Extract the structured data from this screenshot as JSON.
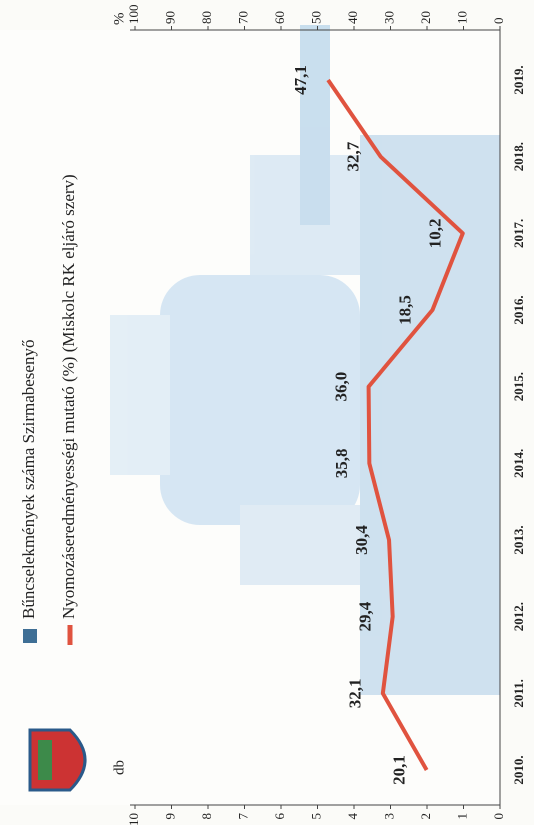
{
  "chart_data": {
    "type": "line",
    "y_label": "db",
    "y2_label": "%",
    "categories": [
      "2010.",
      "2011.",
      "2012.",
      "2013.",
      "2014.",
      "2015.",
      "2016.",
      "2017.",
      "2018.",
      "2019."
    ],
    "series": [
      {
        "name": "Bűncselekmények száma Szirmabesenyő",
        "color": "#3f6f95"
      },
      {
        "name": "Nyomozáseredményességi mutató (%) (Miskolc RK eljáró szerv)",
        "color": "#e0533f",
        "axis": "y2",
        "values": [
          20.1,
          32.1,
          29.4,
          30.4,
          35.8,
          36.0,
          18.5,
          10.2,
          32.7,
          47.1
        ],
        "value_labels": [
          "20,1",
          "32,1",
          "29,4",
          "30,4",
          "35,8",
          "36,0",
          "18,5",
          "10,2",
          "32,7",
          "47,1"
        ]
      }
    ],
    "ylim": [
      0,
      10
    ],
    "yticks": [
      0,
      1,
      2,
      3,
      4,
      5,
      6,
      7,
      8,
      9,
      10
    ],
    "y2lim": [
      0,
      100
    ],
    "y2ticks": [
      0,
      10,
      20,
      30,
      40,
      50,
      60,
      70,
      80,
      90,
      100
    ]
  }
}
